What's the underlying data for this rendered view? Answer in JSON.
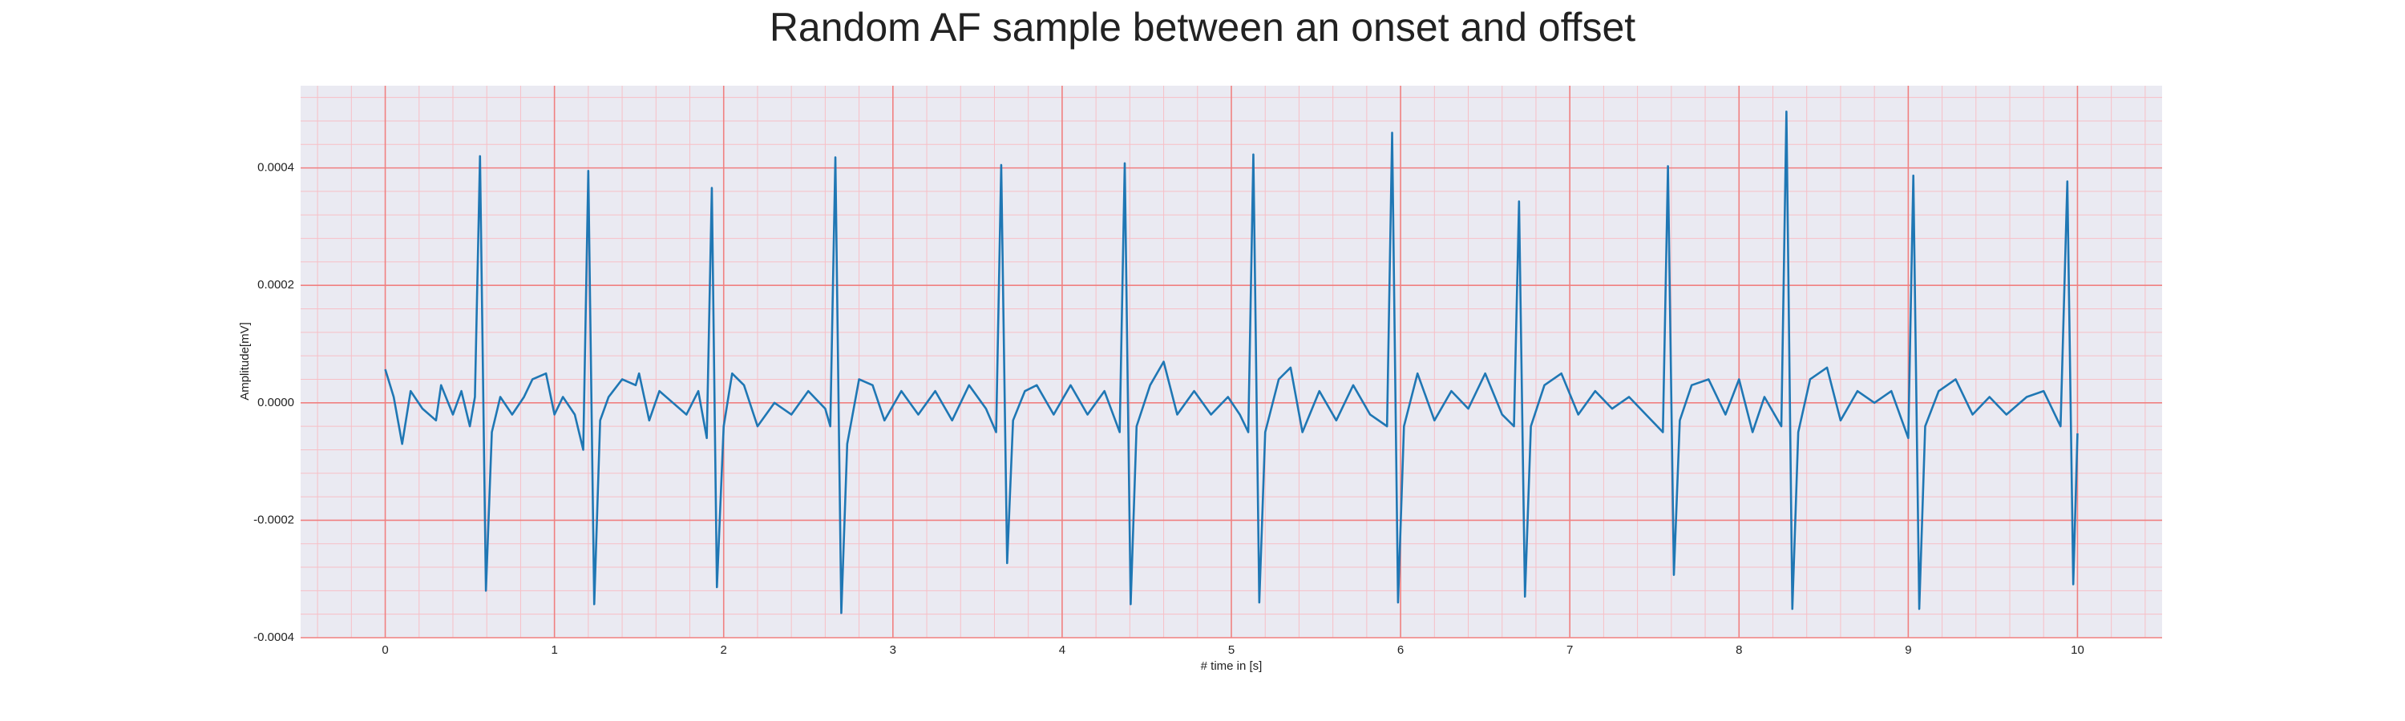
{
  "chart_data": {
    "type": "line",
    "title": "Random AF sample between an onset and offset",
    "xlabel": "# time in [s]",
    "ylabel": "Amplitude[mV]",
    "color": "#1f77b4",
    "major_grid_color": "#f08080",
    "minor_grid_color": "#f7bfc6",
    "grid": true,
    "minor_divisions": 5,
    "xlim": [
      -0.5,
      10.5
    ],
    "ylim": [
      -0.0004,
      0.00054
    ],
    "xticks": [
      0,
      1,
      2,
      3,
      4,
      5,
      6,
      7,
      8,
      9,
      10
    ],
    "yticks": [
      -0.0004,
      -0.0002,
      {
        "value": 0,
        "label": "0.0000"
      },
      0.0002,
      0.0004
    ],
    "x": [
      0.0,
      0.05,
      0.1,
      0.15,
      0.22,
      0.3,
      0.33,
      0.4,
      0.45,
      0.5,
      0.53,
      0.56,
      0.595,
      0.63,
      0.68,
      0.75,
      0.82,
      0.87,
      0.95,
      1.0,
      1.05,
      1.12,
      1.17,
      1.2,
      1.235,
      1.27,
      1.32,
      1.4,
      1.48,
      1.5,
      1.56,
      1.62,
      1.7,
      1.78,
      1.85,
      1.9,
      1.93,
      1.96,
      2.0,
      2.05,
      2.12,
      2.2,
      2.3,
      2.4,
      2.5,
      2.6,
      2.63,
      2.66,
      2.695,
      2.73,
      2.8,
      2.88,
      2.95,
      3.05,
      3.15,
      3.25,
      3.35,
      3.45,
      3.55,
      3.61,
      3.64,
      3.675,
      3.71,
      3.78,
      3.85,
      3.95,
      4.05,
      4.15,
      4.25,
      4.34,
      4.37,
      4.405,
      4.44,
      4.52,
      4.6,
      4.68,
      4.78,
      4.88,
      4.98,
      5.05,
      5.1,
      5.13,
      5.165,
      5.2,
      5.28,
      5.35,
      5.42,
      5.52,
      5.62,
      5.72,
      5.82,
      5.92,
      5.95,
      5.985,
      6.02,
      6.1,
      6.2,
      6.3,
      6.4,
      6.5,
      6.6,
      6.67,
      6.7,
      6.735,
      6.77,
      6.85,
      6.95,
      7.05,
      7.15,
      7.25,
      7.35,
      7.45,
      7.55,
      7.58,
      7.615,
      7.65,
      7.72,
      7.82,
      7.92,
      8.0,
      8.08,
      8.15,
      8.25,
      8.28,
      8.315,
      8.35,
      8.42,
      8.52,
      8.6,
      8.7,
      8.8,
      8.9,
      9.0,
      9.03,
      9.065,
      9.1,
      9.18,
      9.28,
      9.38,
      9.48,
      9.58,
      9.7,
      9.8,
      9.9,
      9.94,
      9.975,
      10.0
    ],
    "values": [
      5.7e-05,
      1e-05,
      -7e-05,
      2e-05,
      -1e-05,
      -3e-05,
      3e-05,
      -2e-05,
      2e-05,
      -4e-05,
      1e-05,
      0.00042,
      -0.00032,
      -5e-05,
      1e-05,
      -2e-05,
      1e-05,
      4e-05,
      5e-05,
      -2e-05,
      1e-05,
      -2e-05,
      -8e-05,
      0.000395,
      -0.000343,
      -3e-05,
      1e-05,
      4e-05,
      3e-05,
      5e-05,
      -3e-05,
      2e-05,
      0.0,
      -2e-05,
      2e-05,
      -6e-05,
      0.000366,
      -0.000314,
      -4e-05,
      5e-05,
      3e-05,
      -4e-05,
      0.0,
      -2e-05,
      2e-05,
      -1e-05,
      -4e-05,
      0.000418,
      -0.000358,
      -7e-05,
      4e-05,
      3e-05,
      -3e-05,
      2e-05,
      -2e-05,
      2e-05,
      -3e-05,
      3e-05,
      -1e-05,
      -5e-05,
      0.000405,
      -0.000273,
      -3e-05,
      2e-05,
      3e-05,
      -2e-05,
      3e-05,
      -2e-05,
      2e-05,
      -5e-05,
      0.000408,
      -0.000343,
      -4e-05,
      3e-05,
      7e-05,
      -2e-05,
      2e-05,
      -2e-05,
      1e-05,
      -2e-05,
      -5e-05,
      0.000423,
      -0.00034,
      -5e-05,
      4e-05,
      6e-05,
      -5e-05,
      2e-05,
      -3e-05,
      3e-05,
      -2e-05,
      -4e-05,
      0.00046,
      -0.00034,
      -4e-05,
      5e-05,
      -3e-05,
      2e-05,
      -1e-05,
      5e-05,
      -2e-05,
      -4e-05,
      0.000343,
      -0.00033,
      -4e-05,
      3e-05,
      5e-05,
      -2e-05,
      2e-05,
      -1e-05,
      1e-05,
      -2e-05,
      -5e-05,
      0.000403,
      -0.000293,
      -3e-05,
      3e-05,
      4e-05,
      -2e-05,
      4e-05,
      -5e-05,
      1e-05,
      -4e-05,
      0.000496,
      -0.000351,
      -5e-05,
      4e-05,
      6e-05,
      -3e-05,
      2e-05,
      0.0,
      2e-05,
      -6e-05,
      0.000387,
      -0.000351,
      -4e-05,
      2e-05,
      4e-05,
      -2e-05,
      1e-05,
      -2e-05,
      1e-05,
      2e-05,
      -4e-05,
      0.000377,
      -0.000309,
      -5.2e-05
    ]
  }
}
